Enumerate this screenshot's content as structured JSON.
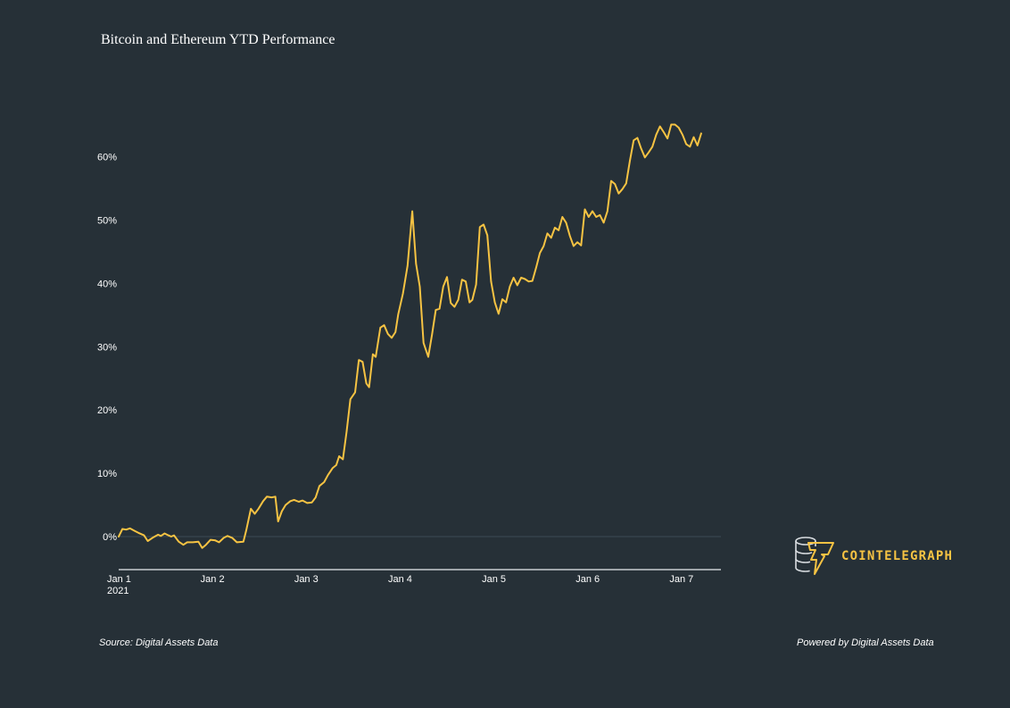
{
  "title": "Bitcoin and Ethereum YTD Performance",
  "footer": {
    "source": "Source: Digital Assets Data",
    "powered": "Powered by Digital Assets Data"
  },
  "logo": {
    "text": "COINTELEGRAPH",
    "color": "#f6c343",
    "icon": "coin-stack-lightning-icon"
  },
  "colors": {
    "background": "#263037",
    "line": "#f6c343",
    "axis": "#c7ccd1",
    "zero_line": "#3c4a54"
  },
  "chart_data": {
    "type": "line",
    "title": "Bitcoin and Ethereum YTD Performance",
    "xlabel": "",
    "ylabel": "",
    "xlim": [
      0,
      6.42
    ],
    "ylim": [
      -5.5,
      67
    ],
    "x_ticks": [
      {
        "x": 0,
        "label": "Jan 1",
        "sublabel": "2021"
      },
      {
        "x": 1,
        "label": "Jan 2"
      },
      {
        "x": 2,
        "label": "Jan 3"
      },
      {
        "x": 3,
        "label": "Jan 4"
      },
      {
        "x": 4,
        "label": "Jan 5"
      },
      {
        "x": 5,
        "label": "Jan 6"
      },
      {
        "x": 6,
        "label": "Jan 7"
      }
    ],
    "y_ticks": [
      0,
      10,
      20,
      30,
      40,
      50,
      60
    ],
    "y_tick_format": "%",
    "grid": false,
    "series": [
      {
        "points": [
          [
            0.0,
            0.0
          ],
          [
            0.04,
            1.2
          ],
          [
            0.08,
            1.1
          ],
          [
            0.12,
            1.3
          ],
          [
            0.17,
            0.9
          ],
          [
            0.21,
            0.6
          ],
          [
            0.27,
            0.2
          ],
          [
            0.31,
            -0.7
          ],
          [
            0.36,
            -0.2
          ],
          [
            0.42,
            0.3
          ],
          [
            0.45,
            0.1
          ],
          [
            0.49,
            0.5
          ],
          [
            0.53,
            0.2
          ],
          [
            0.56,
            0.0
          ],
          [
            0.59,
            0.2
          ],
          [
            0.64,
            -0.8
          ],
          [
            0.69,
            -1.3
          ],
          [
            0.73,
            -0.9
          ],
          [
            0.79,
            -0.9
          ],
          [
            0.85,
            -0.8
          ],
          [
            0.89,
            -1.8
          ],
          [
            0.93,
            -1.3
          ],
          [
            0.98,
            -0.5
          ],
          [
            1.03,
            -0.6
          ],
          [
            1.07,
            -0.9
          ],
          [
            1.12,
            -0.2
          ],
          [
            1.16,
            0.1
          ],
          [
            1.21,
            -0.2
          ],
          [
            1.26,
            -0.9
          ],
          [
            1.33,
            -0.8
          ],
          [
            1.36,
            1.0
          ],
          [
            1.41,
            4.4
          ],
          [
            1.45,
            3.6
          ],
          [
            1.49,
            4.4
          ],
          [
            1.54,
            5.6
          ],
          [
            1.58,
            6.3
          ],
          [
            1.63,
            6.2
          ],
          [
            1.67,
            6.3
          ],
          [
            1.7,
            2.4
          ],
          [
            1.74,
            4.0
          ],
          [
            1.78,
            5.0
          ],
          [
            1.83,
            5.6
          ],
          [
            1.87,
            5.8
          ],
          [
            1.92,
            5.5
          ],
          [
            1.96,
            5.7
          ],
          [
            2.01,
            5.3
          ],
          [
            2.06,
            5.4
          ],
          [
            2.1,
            6.2
          ],
          [
            2.14,
            8.0
          ],
          [
            2.19,
            8.6
          ],
          [
            2.23,
            9.7
          ],
          [
            2.28,
            10.8
          ],
          [
            2.32,
            11.3
          ],
          [
            2.35,
            12.7
          ],
          [
            2.39,
            12.2
          ],
          [
            2.43,
            16.6
          ],
          [
            2.47,
            21.7
          ],
          [
            2.52,
            22.8
          ],
          [
            2.56,
            27.9
          ],
          [
            2.6,
            27.6
          ],
          [
            2.64,
            24.2
          ],
          [
            2.67,
            23.6
          ],
          [
            2.71,
            28.8
          ],
          [
            2.74,
            28.4
          ],
          [
            2.79,
            33.0
          ],
          [
            2.83,
            33.4
          ],
          [
            2.87,
            32.0
          ],
          [
            2.91,
            31.4
          ],
          [
            2.95,
            32.3
          ],
          [
            2.98,
            35.1
          ],
          [
            3.03,
            38.4
          ],
          [
            3.08,
            42.8
          ],
          [
            3.13,
            51.4
          ],
          [
            3.17,
            43.1
          ],
          [
            3.21,
            39.5
          ],
          [
            3.25,
            30.6
          ],
          [
            3.3,
            28.4
          ],
          [
            3.34,
            31.9
          ],
          [
            3.38,
            35.8
          ],
          [
            3.42,
            36.0
          ],
          [
            3.46,
            39.5
          ],
          [
            3.5,
            41.0
          ],
          [
            3.54,
            36.9
          ],
          [
            3.58,
            36.3
          ],
          [
            3.62,
            37.4
          ],
          [
            3.66,
            40.6
          ],
          [
            3.7,
            40.3
          ],
          [
            3.74,
            37.0
          ],
          [
            3.77,
            37.4
          ],
          [
            3.81,
            39.8
          ],
          [
            3.85,
            48.9
          ],
          [
            3.89,
            49.3
          ],
          [
            3.93,
            47.6
          ],
          [
            3.97,
            40.3
          ],
          [
            4.01,
            37.0
          ],
          [
            4.05,
            35.2
          ],
          [
            4.09,
            37.5
          ],
          [
            4.13,
            37.0
          ],
          [
            4.17,
            39.5
          ],
          [
            4.21,
            40.9
          ],
          [
            4.25,
            39.7
          ],
          [
            4.29,
            40.9
          ],
          [
            4.33,
            40.7
          ],
          [
            4.37,
            40.3
          ],
          [
            4.41,
            40.4
          ],
          [
            4.45,
            42.5
          ],
          [
            4.49,
            44.8
          ],
          [
            4.53,
            45.9
          ],
          [
            4.57,
            47.9
          ],
          [
            4.61,
            47.2
          ],
          [
            4.65,
            48.8
          ],
          [
            4.69,
            48.4
          ],
          [
            4.73,
            50.5
          ],
          [
            4.77,
            49.6
          ],
          [
            4.81,
            47.5
          ],
          [
            4.85,
            45.9
          ],
          [
            4.89,
            46.5
          ],
          [
            4.93,
            46.0
          ],
          [
            4.97,
            51.7
          ],
          [
            5.01,
            50.5
          ],
          [
            5.05,
            51.4
          ],
          [
            5.09,
            50.5
          ],
          [
            5.13,
            50.8
          ],
          [
            5.17,
            49.6
          ],
          [
            5.21,
            51.4
          ],
          [
            5.25,
            56.2
          ],
          [
            5.29,
            55.7
          ],
          [
            5.33,
            54.2
          ],
          [
            5.37,
            54.9
          ],
          [
            5.41,
            55.8
          ],
          [
            5.45,
            59.4
          ],
          [
            5.49,
            62.6
          ],
          [
            5.53,
            63.0
          ],
          [
            5.57,
            61.3
          ],
          [
            5.61,
            59.9
          ],
          [
            5.65,
            60.7
          ],
          [
            5.69,
            61.6
          ],
          [
            5.73,
            63.5
          ],
          [
            5.77,
            64.8
          ],
          [
            5.81,
            63.9
          ],
          [
            5.85,
            62.9
          ],
          [
            5.89,
            65.1
          ],
          [
            5.93,
            65.1
          ],
          [
            5.97,
            64.6
          ],
          [
            6.01,
            63.5
          ],
          [
            6.05,
            62.0
          ],
          [
            6.09,
            61.6
          ],
          [
            6.13,
            63.1
          ],
          [
            6.17,
            61.8
          ],
          [
            6.21,
            63.7
          ]
        ]
      }
    ]
  }
}
